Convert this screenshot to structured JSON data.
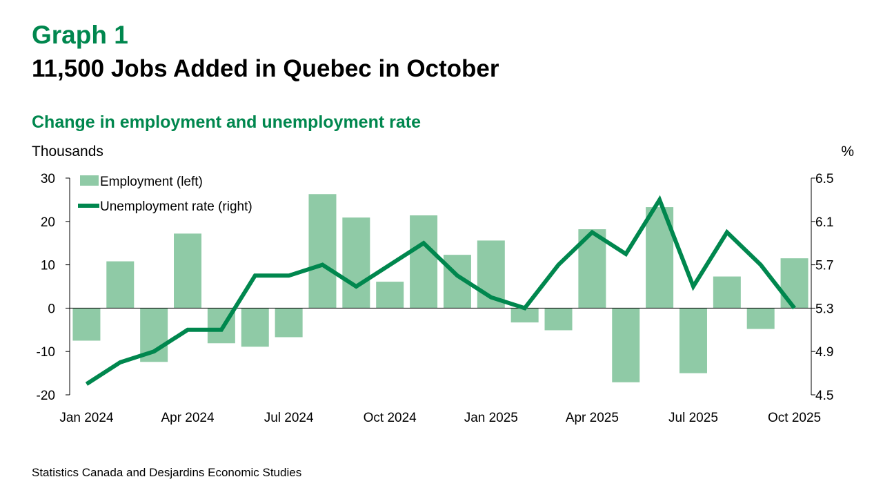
{
  "header": {
    "graph_label": "Graph 1",
    "title": "11,500 Jobs Added in Quebec in October",
    "subtitle": "Change in employment and unemployment rate"
  },
  "source": "Statistics Canada and Desjardins Economic Studies",
  "chart_data": {
    "type": "bar+line",
    "categories": [
      "Jan 2024",
      "Feb 2024",
      "Mar 2024",
      "Apr 2024",
      "May 2024",
      "Jun 2024",
      "Jul 2024",
      "Aug 2024",
      "Sep 2024",
      "Oct 2024",
      "Nov 2024",
      "Dec 2024",
      "Jan 2025",
      "Feb 2025",
      "Mar 2025",
      "Apr 2025",
      "May 2025",
      "Jun 2025",
      "Jul 2025",
      "Aug 2025",
      "Sep 2025",
      "Oct 2025"
    ],
    "x_tick_labels": [
      "Jan 2024",
      "Apr 2024",
      "Jul 2024",
      "Oct 2024",
      "Jan 2025",
      "Apr 2025",
      "Jul 2025",
      "Oct 2025"
    ],
    "ylabel_left": "Thousands",
    "ylabel_right": "%",
    "ylim_left": [
      -20,
      30
    ],
    "yticks_left": [
      "30",
      "20",
      "10",
      "0",
      "-10",
      "-20"
    ],
    "ylim_right": [
      4.5,
      6.5
    ],
    "yticks_right": [
      "6.5",
      "6.1",
      "5.7",
      "5.3",
      "4.9",
      "4.5"
    ],
    "legend_position": "top-left",
    "series": [
      {
        "name": "Employment (left)",
        "type": "bar",
        "axis": "left",
        "color": "#8fcaa6",
        "values": [
          -7.5,
          10.8,
          -12.4,
          17.2,
          -8.1,
          -8.9,
          -6.7,
          26.3,
          20.9,
          6.1,
          21.4,
          12.3,
          15.6,
          -3.3,
          -5.1,
          18.2,
          -17.1,
          23.3,
          -15.0,
          7.3,
          -4.8,
          11.5
        ]
      },
      {
        "name": "Unemployment rate (right)",
        "type": "line",
        "axis": "right",
        "color": "#00874e",
        "values": [
          4.6,
          4.8,
          4.9,
          5.1,
          5.1,
          5.6,
          5.6,
          5.7,
          5.5,
          5.7,
          5.9,
          5.6,
          5.4,
          5.3,
          5.7,
          6.0,
          5.8,
          6.3,
          5.5,
          6.0,
          5.7,
          5.3
        ]
      }
    ]
  }
}
